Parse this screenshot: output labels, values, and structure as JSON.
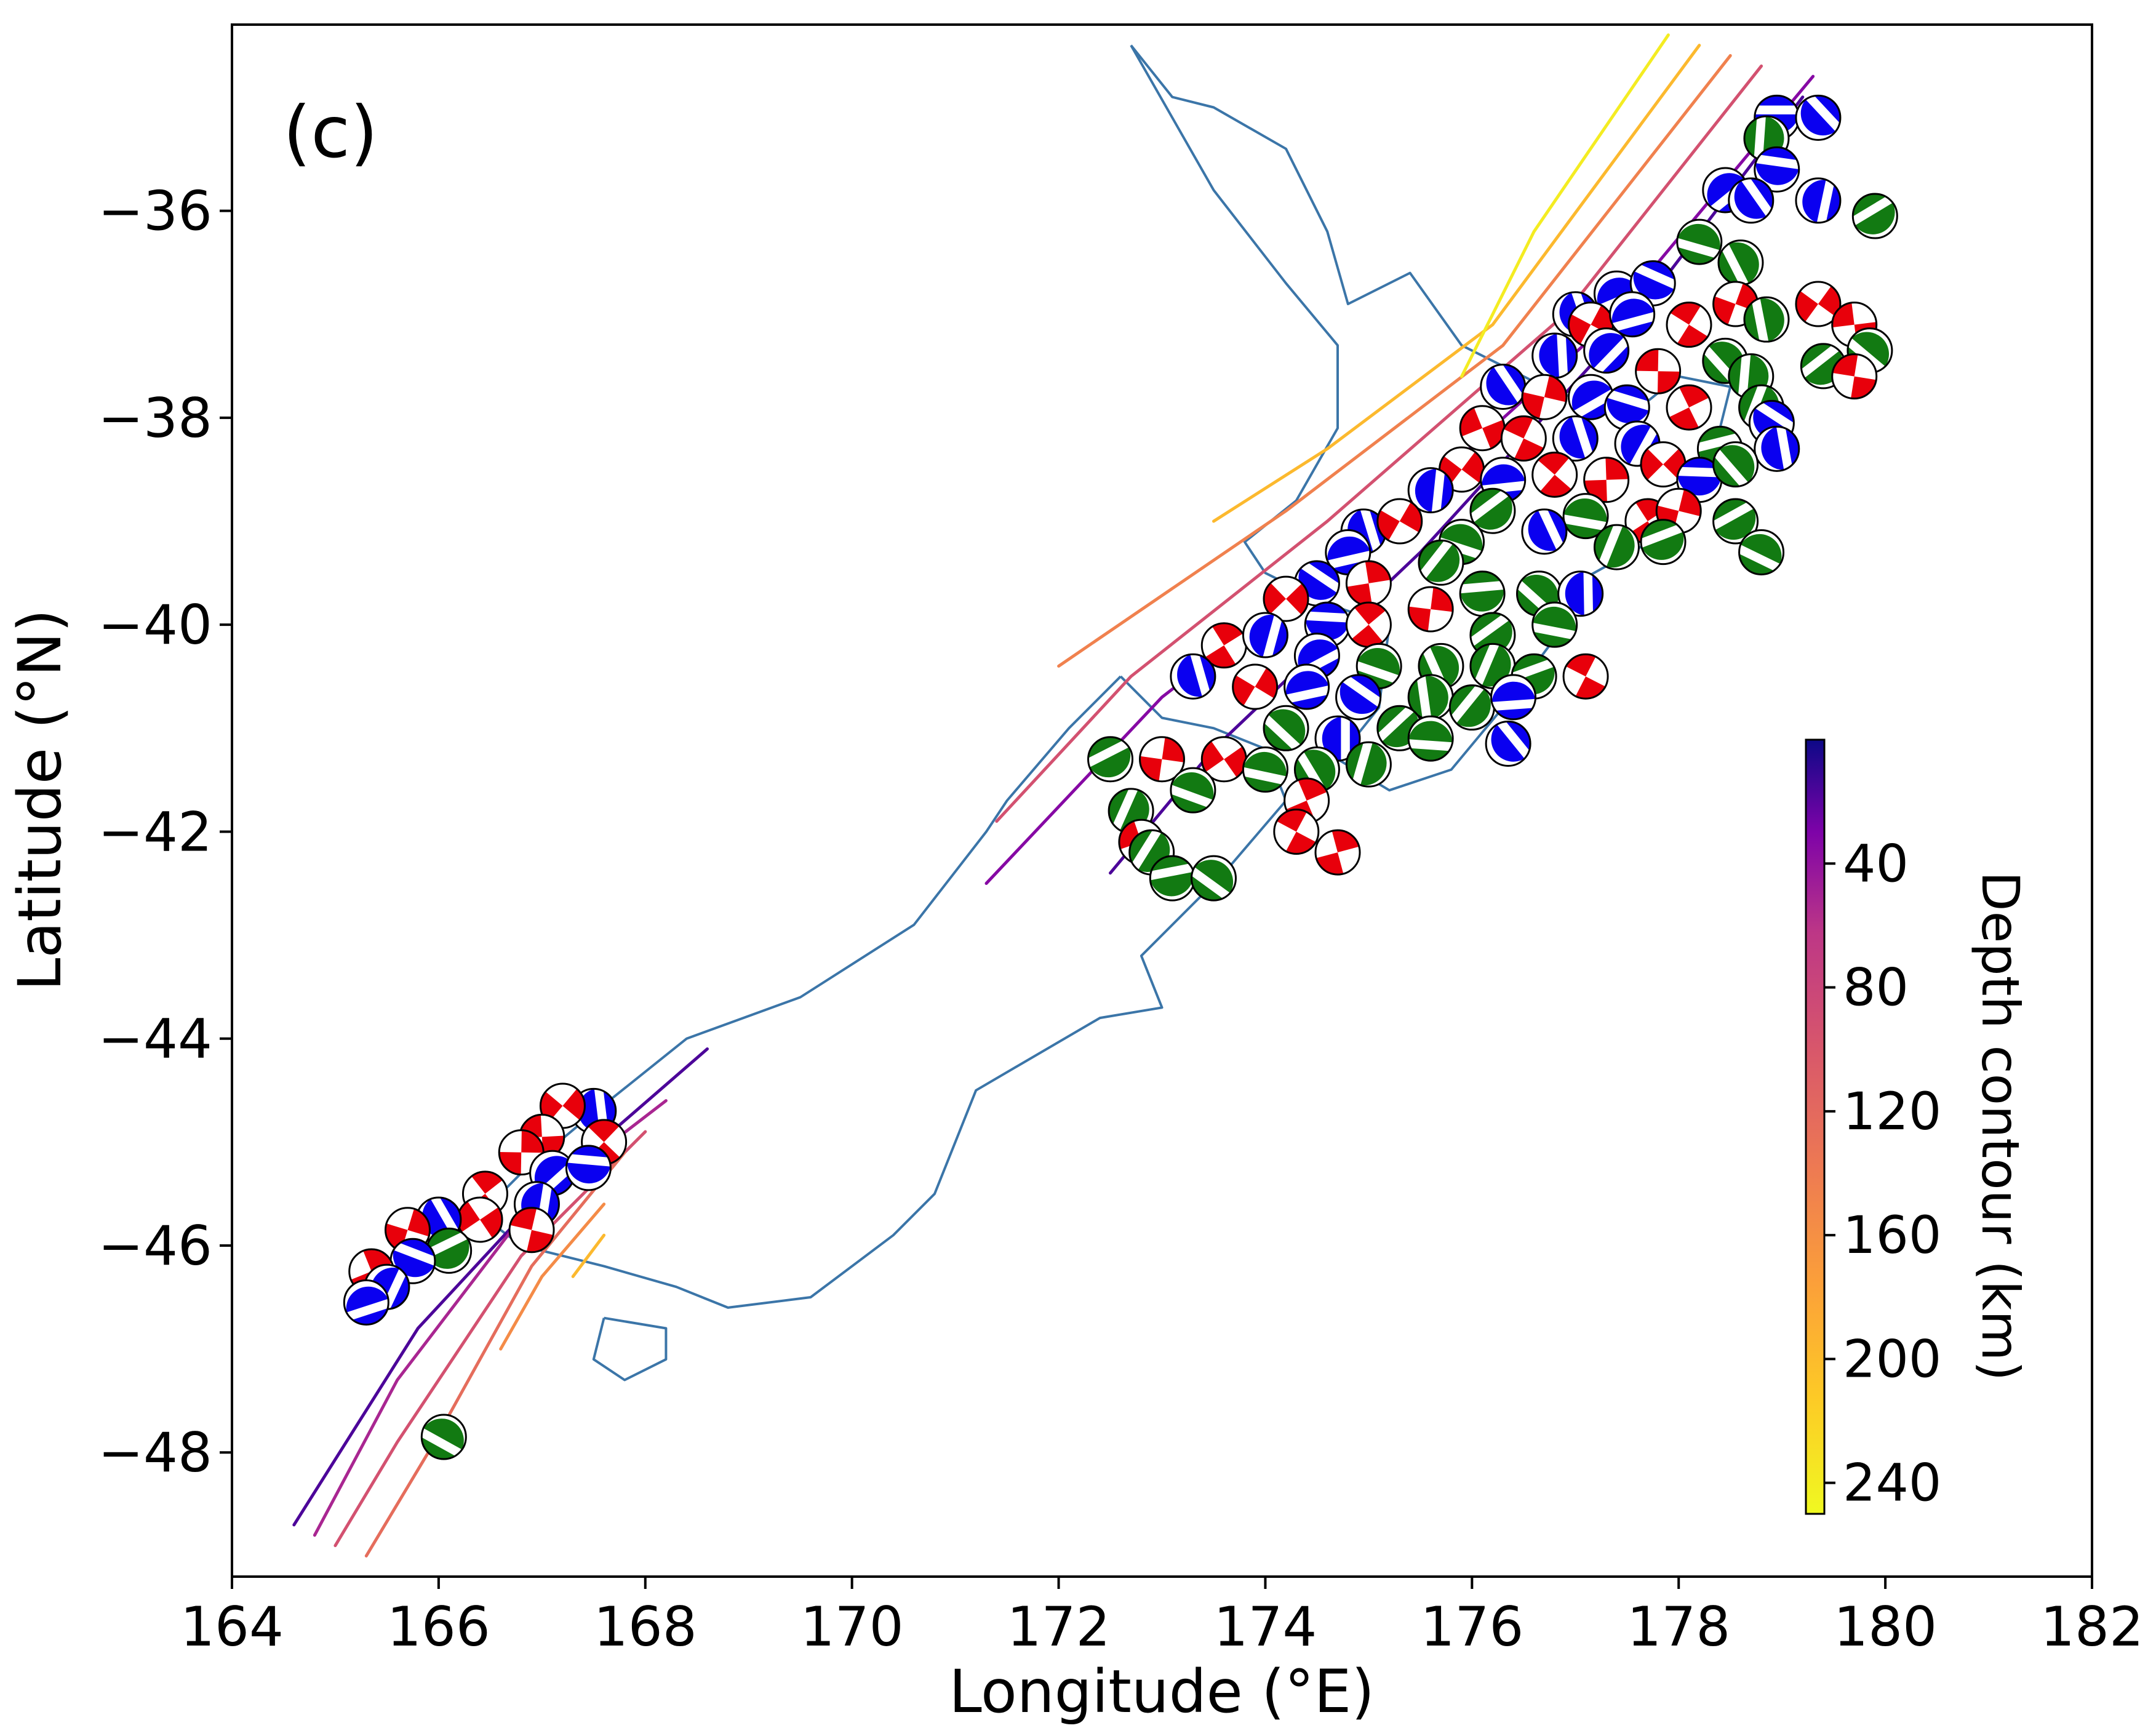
{
  "panel_label": "(c)",
  "axes": {
    "xlabel": "Longitude (°E)",
    "ylabel": "Latitude (°N)",
    "xlim": [
      164,
      182
    ],
    "ylim": [
      -49.2,
      -34.2
    ],
    "xticks": [
      164,
      166,
      168,
      170,
      172,
      174,
      176,
      178,
      180,
      182
    ],
    "yticks": [
      -36,
      -38,
      -40,
      -42,
      -44,
      -46,
      -48
    ]
  },
  "colorbar": {
    "label": "Depth contour (km)",
    "range": [
      0,
      250
    ],
    "ticks": [
      40,
      80,
      120,
      160,
      200,
      240
    ]
  },
  "colors": {
    "coastline": "#3b75a8",
    "mechanism_red": "#e8000b",
    "mechanism_blue": "#0a00f0",
    "mechanism_green": "#127a12"
  },
  "chart_data": {
    "type": "map",
    "coastline": {
      "north_island": [
        [
          172.7,
          -34.4
        ],
        [
          173.1,
          -34.9
        ],
        [
          173.5,
          -35.0
        ],
        [
          174.2,
          -35.4
        ],
        [
          174.6,
          -36.2
        ],
        [
          174.8,
          -36.9
        ],
        [
          175.4,
          -36.6
        ],
        [
          175.9,
          -37.3
        ],
        [
          176.7,
          -37.7
        ],
        [
          177.5,
          -38.0
        ],
        [
          178.0,
          -37.6
        ],
        [
          178.5,
          -37.7
        ],
        [
          178.3,
          -38.5
        ],
        [
          177.9,
          -39.1
        ],
        [
          177.0,
          -39.6
        ],
        [
          176.9,
          -40.0
        ],
        [
          176.3,
          -40.8
        ],
        [
          175.8,
          -41.4
        ],
        [
          175.2,
          -41.6
        ],
        [
          174.7,
          -41.3
        ],
        [
          175.1,
          -40.8
        ],
        [
          175.2,
          -40.0
        ],
        [
          174.6,
          -39.8
        ],
        [
          174.0,
          -39.5
        ],
        [
          173.8,
          -39.2
        ],
        [
          174.3,
          -38.8
        ],
        [
          174.7,
          -38.1
        ],
        [
          174.7,
          -37.3
        ],
        [
          174.2,
          -36.7
        ],
        [
          173.5,
          -35.8
        ],
        [
          172.7,
          -34.4
        ]
      ],
      "south_island": [
        [
          172.6,
          -40.5
        ],
        [
          173.0,
          -40.9
        ],
        [
          173.5,
          -41.0
        ],
        [
          174.0,
          -41.2
        ],
        [
          174.2,
          -41.7
        ],
        [
          173.6,
          -42.4
        ],
        [
          172.8,
          -43.2
        ],
        [
          173.0,
          -43.7
        ],
        [
          172.4,
          -43.8
        ],
        [
          171.2,
          -44.5
        ],
        [
          170.8,
          -45.5
        ],
        [
          170.4,
          -45.9
        ],
        [
          169.6,
          -46.5
        ],
        [
          168.8,
          -46.6
        ],
        [
          168.3,
          -46.4
        ],
        [
          167.6,
          -46.2
        ],
        [
          166.8,
          -46.0
        ],
        [
          166.4,
          -45.7
        ],
        [
          166.8,
          -45.3
        ],
        [
          167.4,
          -44.8
        ],
        [
          168.4,
          -44.0
        ],
        [
          169.5,
          -43.6
        ],
        [
          170.6,
          -42.9
        ],
        [
          171.3,
          -42.0
        ],
        [
          171.5,
          -41.7
        ],
        [
          172.1,
          -41.0
        ],
        [
          172.6,
          -40.5
        ]
      ],
      "stewart_island": [
        [
          167.6,
          -46.7
        ],
        [
          168.2,
          -46.8
        ],
        [
          168.2,
          -47.1
        ],
        [
          167.8,
          -47.3
        ],
        [
          167.5,
          -47.1
        ],
        [
          167.6,
          -46.7
        ]
      ]
    },
    "depth_contours": [
      {
        "depth": 20,
        "points": [
          [
            179.2,
            -34.9
          ],
          [
            177.6,
            -37.0
          ],
          [
            175.5,
            -39.3
          ],
          [
            173.5,
            -41.2
          ],
          [
            172.5,
            -42.4
          ]
        ]
      },
      {
        "depth": 40,
        "points": [
          [
            179.3,
            -34.7
          ],
          [
            177.3,
            -37.1
          ],
          [
            175.2,
            -39.0
          ],
          [
            173.0,
            -40.7
          ],
          [
            171.3,
            -42.5
          ]
        ]
      },
      {
        "depth": 100,
        "points": [
          [
            178.8,
            -34.6
          ],
          [
            176.9,
            -37.0
          ],
          [
            174.6,
            -39.0
          ],
          [
            172.7,
            -40.5
          ],
          [
            171.4,
            -41.9
          ]
        ]
      },
      {
        "depth": 150,
        "points": [
          [
            178.5,
            -34.5
          ],
          [
            176.3,
            -37.3
          ],
          [
            174.2,
            -38.9
          ],
          [
            172.0,
            -40.4
          ]
        ]
      },
      {
        "depth": 200,
        "points": [
          [
            178.2,
            -34.4
          ],
          [
            176.2,
            -37.1
          ],
          [
            174.6,
            -38.3
          ],
          [
            173.5,
            -39.0
          ]
        ]
      },
      {
        "depth": 240,
        "points": [
          [
            177.9,
            -34.3
          ],
          [
            176.6,
            -36.2
          ],
          [
            175.9,
            -37.6
          ]
        ]
      },
      {
        "depth": 20,
        "points": [
          [
            168.6,
            -44.1
          ],
          [
            167.1,
            -45.4
          ],
          [
            165.8,
            -46.8
          ],
          [
            164.6,
            -48.7
          ]
        ]
      },
      {
        "depth": 60,
        "points": [
          [
            168.2,
            -44.6
          ],
          [
            166.9,
            -45.6
          ],
          [
            165.6,
            -47.3
          ],
          [
            164.8,
            -48.8
          ]
        ]
      },
      {
        "depth": 100,
        "points": [
          [
            168.0,
            -44.9
          ],
          [
            166.8,
            -46.1
          ],
          [
            165.6,
            -47.9
          ],
          [
            165.0,
            -48.9
          ]
        ]
      },
      {
        "depth": 130,
        "points": [
          [
            167.8,
            -45.1
          ],
          [
            166.9,
            -46.2
          ],
          [
            165.9,
            -48.0
          ],
          [
            165.3,
            -49.0
          ]
        ]
      },
      {
        "depth": 160,
        "points": [
          [
            167.6,
            -45.6
          ],
          [
            167.0,
            -46.3
          ],
          [
            166.6,
            -47.0
          ]
        ]
      },
      {
        "depth": 200,
        "points": [
          [
            167.6,
            -45.9
          ],
          [
            167.3,
            -46.3
          ]
        ]
      }
    ],
    "focal_mechanisms": [
      {
        "lon": 178.95,
        "lat": -35.1,
        "type": "normal"
      },
      {
        "lon": 179.35,
        "lat": -35.1,
        "type": "normal"
      },
      {
        "lon": 178.85,
        "lat": -35.3,
        "type": "strike-slip"
      },
      {
        "lon": 178.45,
        "lat": -35.8,
        "type": "normal"
      },
      {
        "lon": 178.95,
        "lat": -35.6,
        "type": "normal"
      },
      {
        "lon": 178.7,
        "lat": -35.9,
        "type": "normal"
      },
      {
        "lon": 179.35,
        "lat": -35.9,
        "type": "normal"
      },
      {
        "lon": 179.9,
        "lat": -36.05,
        "type": "strike-slip"
      },
      {
        "lon": 178.2,
        "lat": -36.3,
        "type": "strike-slip"
      },
      {
        "lon": 178.6,
        "lat": -36.5,
        "type": "strike-slip"
      },
      {
        "lon": 178.55,
        "lat": -36.9,
        "type": "reverse"
      },
      {
        "lon": 177.4,
        "lat": -36.8,
        "type": "normal"
      },
      {
        "lon": 177.75,
        "lat": -36.7,
        "type": "normal"
      },
      {
        "lon": 177.0,
        "lat": -37.0,
        "type": "normal"
      },
      {
        "lon": 177.15,
        "lat": -37.1,
        "type": "reverse"
      },
      {
        "lon": 177.55,
        "lat": -37.0,
        "type": "normal"
      },
      {
        "lon": 178.1,
        "lat": -37.1,
        "type": "reverse"
      },
      {
        "lon": 178.85,
        "lat": -37.05,
        "type": "strike-slip"
      },
      {
        "lon": 179.35,
        "lat": -36.9,
        "type": "reverse"
      },
      {
        "lon": 179.7,
        "lat": -37.1,
        "type": "reverse"
      },
      {
        "lon": 179.85,
        "lat": -37.35,
        "type": "strike-slip"
      },
      {
        "lon": 176.8,
        "lat": -37.4,
        "type": "normal"
      },
      {
        "lon": 177.3,
        "lat": -37.35,
        "type": "normal"
      },
      {
        "lon": 177.8,
        "lat": -37.55,
        "type": "reverse"
      },
      {
        "lon": 178.45,
        "lat": -37.45,
        "type": "strike-slip"
      },
      {
        "lon": 178.7,
        "lat": -37.6,
        "type": "strike-slip"
      },
      {
        "lon": 179.4,
        "lat": -37.5,
        "type": "strike-slip"
      },
      {
        "lon": 179.7,
        "lat": -37.6,
        "type": "reverse"
      },
      {
        "lon": 176.3,
        "lat": -37.7,
        "type": "normal"
      },
      {
        "lon": 176.7,
        "lat": -37.8,
        "type": "reverse"
      },
      {
        "lon": 177.15,
        "lat": -37.8,
        "type": "normal"
      },
      {
        "lon": 177.5,
        "lat": -37.9,
        "type": "normal"
      },
      {
        "lon": 178.1,
        "lat": -37.9,
        "type": "reverse"
      },
      {
        "lon": 178.8,
        "lat": -37.9,
        "type": "strike-slip"
      },
      {
        "lon": 176.1,
        "lat": -38.1,
        "type": "reverse"
      },
      {
        "lon": 176.5,
        "lat": -38.2,
        "type": "reverse"
      },
      {
        "lon": 177.0,
        "lat": -38.2,
        "type": "normal"
      },
      {
        "lon": 177.6,
        "lat": -38.25,
        "type": "normal"
      },
      {
        "lon": 178.4,
        "lat": -38.3,
        "type": "strike-slip"
      },
      {
        "lon": 178.9,
        "lat": -38.05,
        "type": "normal"
      },
      {
        "lon": 178.95,
        "lat": -38.3,
        "type": "normal"
      },
      {
        "lon": 175.9,
        "lat": -38.5,
        "type": "reverse"
      },
      {
        "lon": 176.3,
        "lat": -38.6,
        "type": "normal"
      },
      {
        "lon": 176.8,
        "lat": -38.55,
        "type": "reverse"
      },
      {
        "lon": 177.3,
        "lat": -38.6,
        "type": "reverse"
      },
      {
        "lon": 177.85,
        "lat": -38.45,
        "type": "reverse"
      },
      {
        "lon": 178.2,
        "lat": -38.6,
        "type": "normal"
      },
      {
        "lon": 178.55,
        "lat": -38.45,
        "type": "strike-slip"
      },
      {
        "lon": 175.6,
        "lat": -38.7,
        "type": "normal"
      },
      {
        "lon": 176.2,
        "lat": -38.9,
        "type": "strike-slip"
      },
      {
        "lon": 177.1,
        "lat": -38.95,
        "type": "strike-slip"
      },
      {
        "lon": 177.7,
        "lat": -39.0,
        "type": "reverse"
      },
      {
        "lon": 178.0,
        "lat": -38.9,
        "type": "reverse"
      },
      {
        "lon": 178.55,
        "lat": -39.0,
        "type": "strike-slip"
      },
      {
        "lon": 175.9,
        "lat": -39.2,
        "type": "strike-slip"
      },
      {
        "lon": 176.7,
        "lat": -39.1,
        "type": "normal"
      },
      {
        "lon": 177.4,
        "lat": -39.25,
        "type": "strike-slip"
      },
      {
        "lon": 177.85,
        "lat": -39.2,
        "type": "strike-slip"
      },
      {
        "lon": 178.8,
        "lat": -39.3,
        "type": "strike-slip"
      },
      {
        "lon": 174.95,
        "lat": -39.1,
        "type": "normal"
      },
      {
        "lon": 175.3,
        "lat": -39.0,
        "type": "reverse"
      },
      {
        "lon": 174.8,
        "lat": -39.3,
        "type": "normal"
      },
      {
        "lon": 174.5,
        "lat": -39.6,
        "type": "normal"
      },
      {
        "lon": 175.0,
        "lat": -39.6,
        "type": "reverse"
      },
      {
        "lon": 175.7,
        "lat": -39.4,
        "type": "strike-slip"
      },
      {
        "lon": 176.1,
        "lat": -39.7,
        "type": "strike-slip"
      },
      {
        "lon": 176.65,
        "lat": -39.7,
        "type": "strike-slip"
      },
      {
        "lon": 177.05,
        "lat": -39.7,
        "type": "normal"
      },
      {
        "lon": 174.2,
        "lat": -39.75,
        "type": "reverse"
      },
      {
        "lon": 174.6,
        "lat": -40.0,
        "type": "normal"
      },
      {
        "lon": 175.0,
        "lat": -40.0,
        "type": "reverse"
      },
      {
        "lon": 175.6,
        "lat": -39.85,
        "type": "reverse"
      },
      {
        "lon": 176.2,
        "lat": -40.1,
        "type": "strike-slip"
      },
      {
        "lon": 176.8,
        "lat": -40.0,
        "type": "strike-slip"
      },
      {
        "lon": 173.6,
        "lat": -40.2,
        "type": "reverse"
      },
      {
        "lon": 174.0,
        "lat": -40.1,
        "type": "normal"
      },
      {
        "lon": 174.5,
        "lat": -40.3,
        "type": "normal"
      },
      {
        "lon": 175.1,
        "lat": -40.4,
        "type": "strike-slip"
      },
      {
        "lon": 175.7,
        "lat": -40.4,
        "type": "strike-slip"
      },
      {
        "lon": 176.2,
        "lat": -40.4,
        "type": "strike-slip"
      },
      {
        "lon": 176.6,
        "lat": -40.5,
        "type": "strike-slip"
      },
      {
        "lon": 177.1,
        "lat": -40.5,
        "type": "reverse"
      },
      {
        "lon": 173.3,
        "lat": -40.5,
        "type": "normal"
      },
      {
        "lon": 173.9,
        "lat": -40.6,
        "type": "reverse"
      },
      {
        "lon": 174.4,
        "lat": -40.6,
        "type": "normal"
      },
      {
        "lon": 174.9,
        "lat": -40.7,
        "type": "normal"
      },
      {
        "lon": 175.6,
        "lat": -40.7,
        "type": "strike-slip"
      },
      {
        "lon": 176.0,
        "lat": -40.8,
        "type": "strike-slip"
      },
      {
        "lon": 176.4,
        "lat": -40.7,
        "type": "normal"
      },
      {
        "lon": 174.2,
        "lat": -41.0,
        "type": "strike-slip"
      },
      {
        "lon": 174.7,
        "lat": -41.1,
        "type": "normal"
      },
      {
        "lon": 175.3,
        "lat": -41.0,
        "type": "strike-slip"
      },
      {
        "lon": 175.6,
        "lat": -41.1,
        "type": "strike-slip"
      },
      {
        "lon": 176.35,
        "lat": -41.15,
        "type": "normal"
      },
      {
        "lon": 173.0,
        "lat": -41.3,
        "type": "reverse"
      },
      {
        "lon": 173.6,
        "lat": -41.3,
        "type": "reverse"
      },
      {
        "lon": 174.0,
        "lat": -41.4,
        "type": "strike-slip"
      },
      {
        "lon": 174.5,
        "lat": -41.4,
        "type": "strike-slip"
      },
      {
        "lon": 175.0,
        "lat": -41.35,
        "type": "strike-slip"
      },
      {
        "lon": 172.5,
        "lat": -41.3,
        "type": "strike-slip"
      },
      {
        "lon": 173.3,
        "lat": -41.6,
        "type": "strike-slip"
      },
      {
        "lon": 174.4,
        "lat": -41.7,
        "type": "reverse"
      },
      {
        "lon": 172.7,
        "lat": -41.8,
        "type": "strike-slip"
      },
      {
        "lon": 172.8,
        "lat": -42.1,
        "type": "reverse"
      },
      {
        "lon": 174.3,
        "lat": -42.0,
        "type": "reverse"
      },
      {
        "lon": 174.7,
        "lat": -42.2,
        "type": "reverse"
      },
      {
        "lon": 172.9,
        "lat": -42.2,
        "type": "strike-slip"
      },
      {
        "lon": 173.1,
        "lat": -42.45,
        "type": "strike-slip"
      },
      {
        "lon": 173.5,
        "lat": -42.45,
        "type": "strike-slip"
      },
      {
        "lon": 167.5,
        "lat": -44.7,
        "type": "normal"
      },
      {
        "lon": 167.2,
        "lat": -44.65,
        "type": "reverse"
      },
      {
        "lon": 167.0,
        "lat": -44.95,
        "type": "reverse"
      },
      {
        "lon": 167.6,
        "lat": -45.0,
        "type": "reverse"
      },
      {
        "lon": 166.8,
        "lat": -45.1,
        "type": "reverse"
      },
      {
        "lon": 167.1,
        "lat": -45.3,
        "type": "normal"
      },
      {
        "lon": 167.45,
        "lat": -45.25,
        "type": "normal"
      },
      {
        "lon": 166.45,
        "lat": -45.5,
        "type": "reverse"
      },
      {
        "lon": 166.95,
        "lat": -45.6,
        "type": "normal"
      },
      {
        "lon": 166.4,
        "lat": -45.75,
        "type": "reverse"
      },
      {
        "lon": 166.9,
        "lat": -45.85,
        "type": "reverse"
      },
      {
        "lon": 166.0,
        "lat": -45.75,
        "type": "normal"
      },
      {
        "lon": 165.7,
        "lat": -45.85,
        "type": "reverse"
      },
      {
        "lon": 166.1,
        "lat": -46.05,
        "type": "strike-slip"
      },
      {
        "lon": 165.75,
        "lat": -46.15,
        "type": "normal"
      },
      {
        "lon": 165.35,
        "lat": -46.25,
        "type": "reverse"
      },
      {
        "lon": 165.5,
        "lat": -46.4,
        "type": "normal"
      },
      {
        "lon": 165.3,
        "lat": -46.55,
        "type": "normal"
      },
      {
        "lon": 166.05,
        "lat": -47.85,
        "type": "strike-slip"
      }
    ]
  }
}
